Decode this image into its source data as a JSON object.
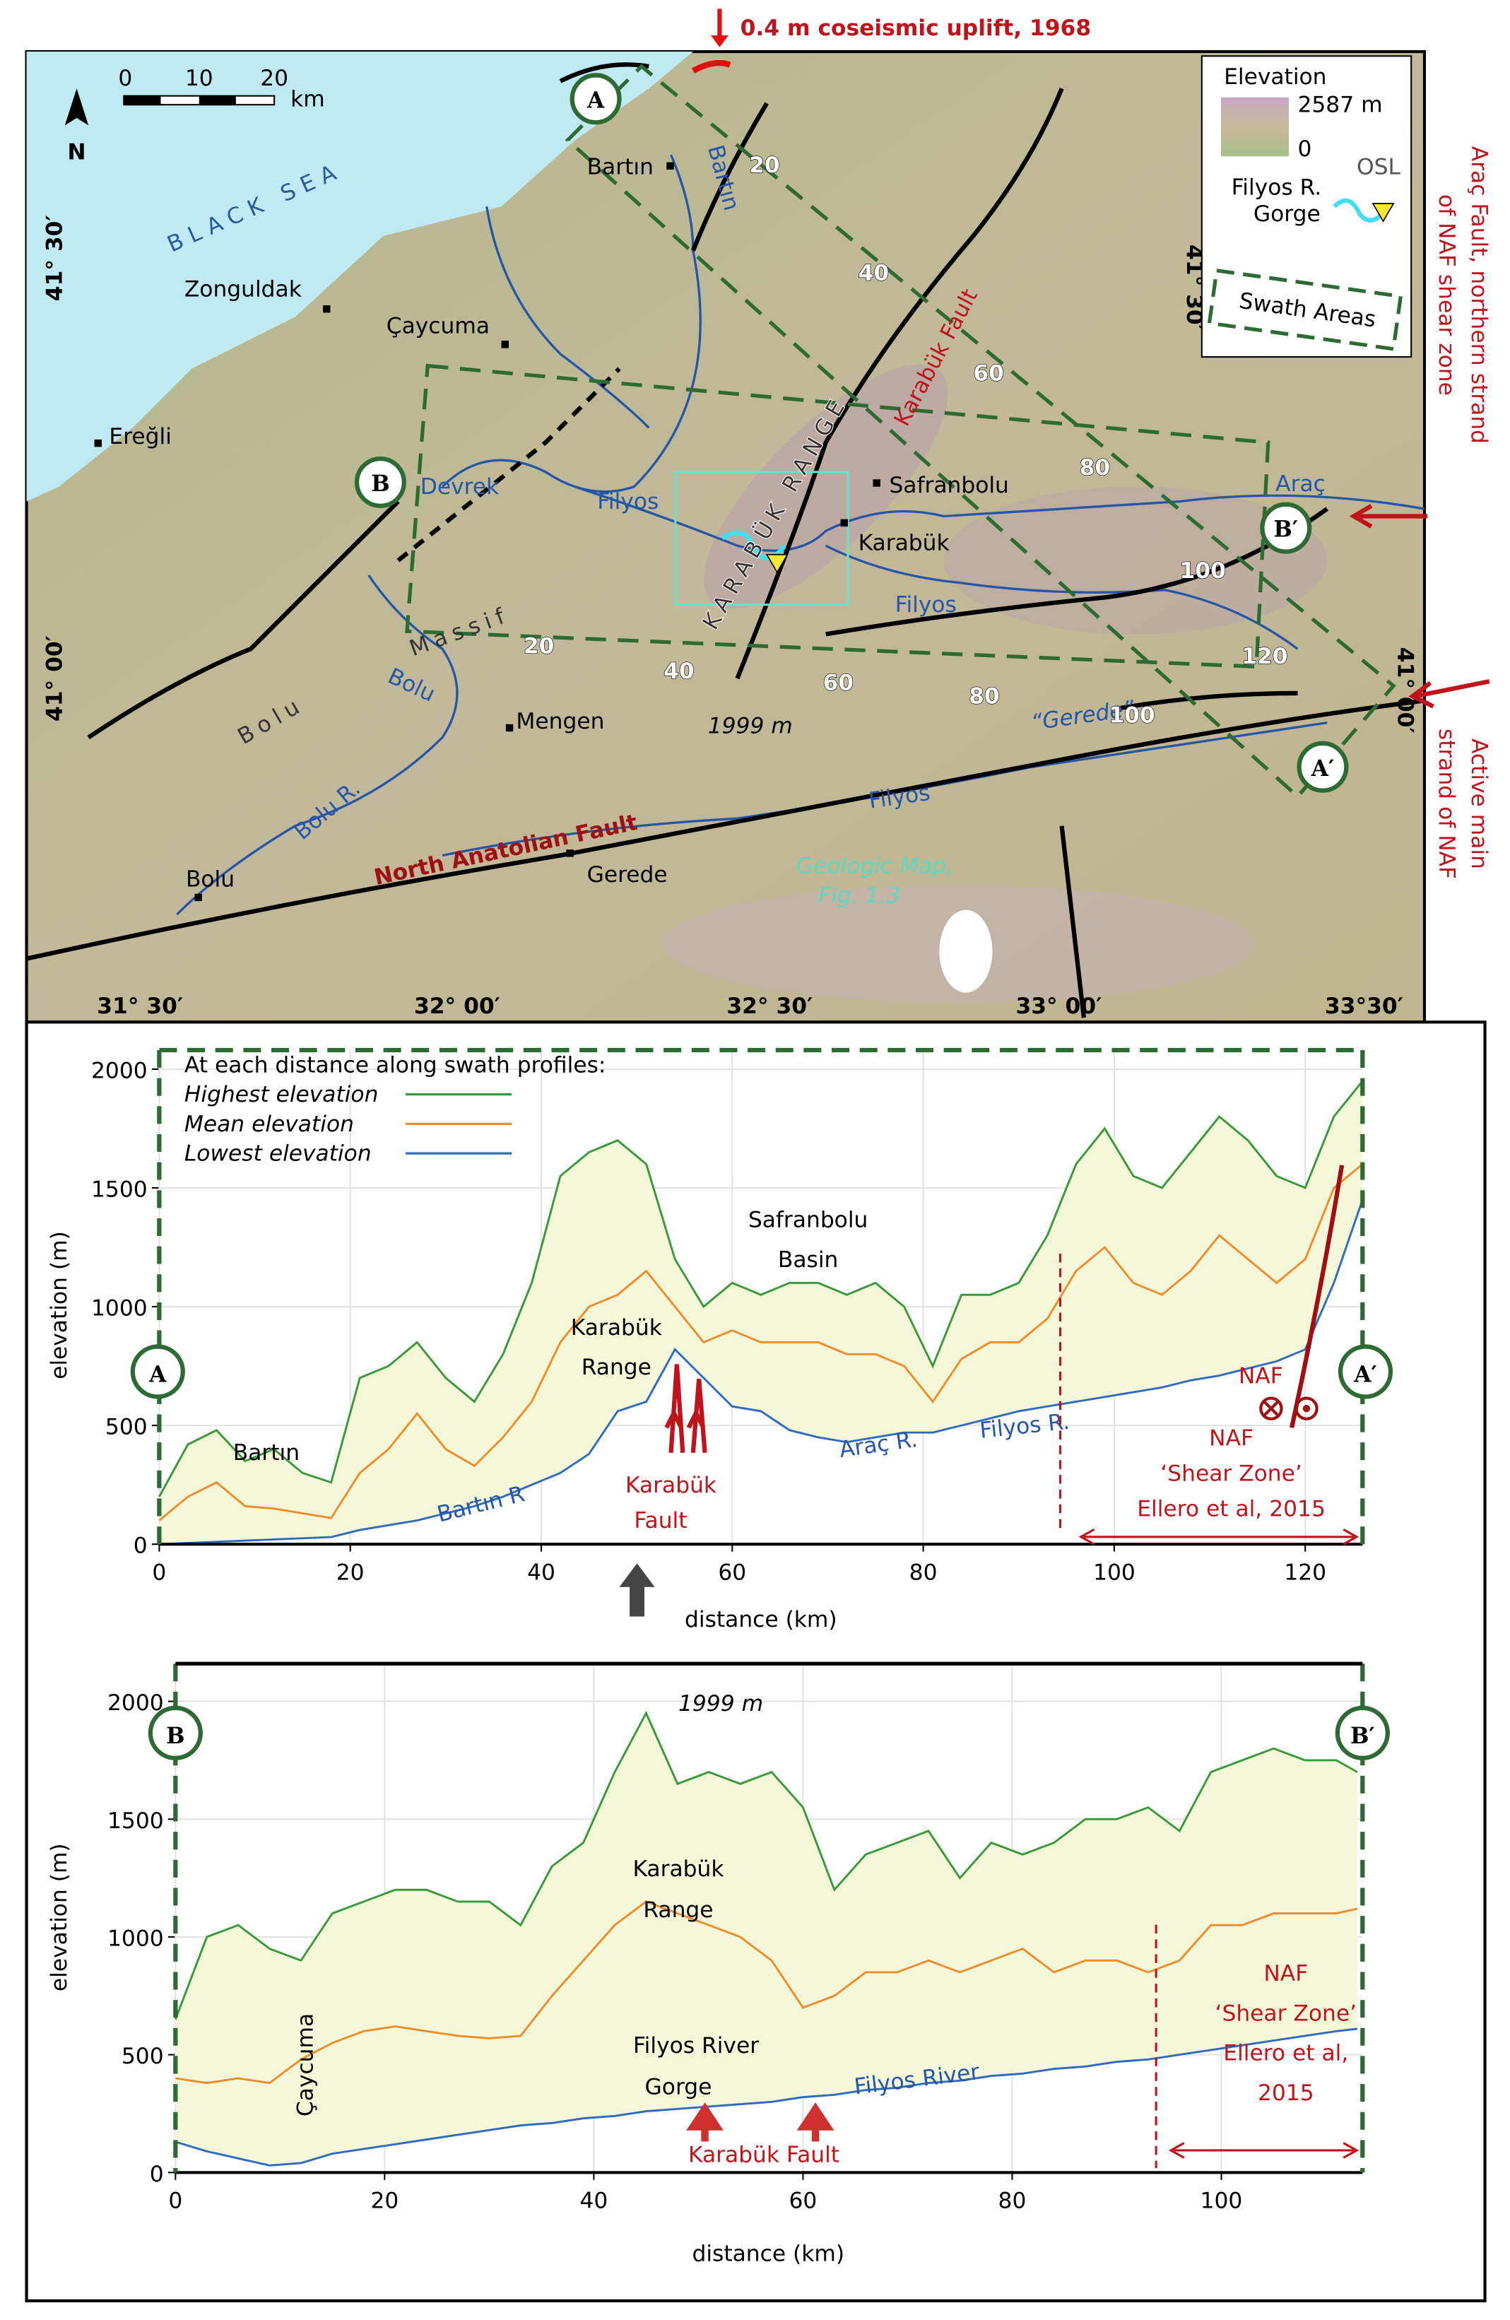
{
  "map": {
    "uplift_note": "0.4 m coseismic uplift, 1968",
    "sea": "BLACK SEA",
    "towns": [
      "Zonguldak",
      "Çaycuma",
      "Ereğli",
      "Bartın",
      "Safranbolu",
      "Karabük",
      "Mengen",
      "Bolu",
      "Gerede"
    ],
    "rivers": [
      "Bartın",
      "Devrek",
      "Filyos",
      "Filyos",
      "Araç",
      "Bolu",
      "Bolu R.",
      "“Gerede”",
      "Filyos"
    ],
    "features": [
      "KARABÜK RANGE",
      "Bolu",
      "Massif",
      "Karabük Fault",
      "North Anatolian Fault",
      "1999 m"
    ],
    "geologic_map_note": [
      "Geologic Map,",
      "Fig. 1.3"
    ],
    "contours": [
      "20",
      "40",
      "60",
      "80",
      "100",
      "120",
      "20",
      "40",
      "60",
      "80",
      "100"
    ],
    "profile_ends": [
      "A",
      "B",
      "B′",
      "A′"
    ],
    "latitudes": [
      "41° 30′",
      "41° 00′",
      "41° 30′",
      "41° 00′"
    ],
    "longitudes": [
      "31° 30′",
      "32° 00′",
      "32° 30′",
      "33° 00′",
      "33°30′"
    ],
    "north": "N",
    "scale": {
      "ticks": [
        "0",
        "10",
        "20"
      ],
      "unit": "km"
    },
    "legend": {
      "title": "Elevation",
      "max": "2587 m",
      "min": "0",
      "gorge": [
        "Filyos R.",
        "Gorge"
      ],
      "osl": "OSL",
      "swath": "Swath Areas"
    },
    "side_notes": [
      [
        "Araç Fault, northern strand",
        "of NAF shear zone"
      ],
      [
        "Active main",
        "strand of NAF"
      ]
    ]
  },
  "chart_data": [
    {
      "type": "line",
      "x_label": "distance (km)",
      "y_label": "elevation (m)",
      "legend_title": "At each distance along swath profiles:",
      "x": [
        0,
        3,
        6,
        9,
        12,
        15,
        18,
        21,
        24,
        27,
        30,
        33,
        36,
        39,
        42,
        45,
        48,
        51,
        54,
        57,
        60,
        63,
        66,
        69,
        72,
        75,
        78,
        81,
        84,
        87,
        90,
        93,
        96,
        99,
        102,
        105,
        108,
        111,
        114,
        117,
        120,
        123,
        126
      ],
      "series": [
        {
          "name": "Highest elevation",
          "color": "#3a9a3a",
          "values": [
            200,
            420,
            480,
            350,
            400,
            300,
            260,
            700,
            750,
            850,
            700,
            600,
            800,
            1100,
            1550,
            1650,
            1700,
            1600,
            1200,
            1000,
            1100,
            1050,
            1100,
            1100,
            1050,
            1100,
            1000,
            750,
            1050,
            1050,
            1100,
            1300,
            1600,
            1750,
            1550,
            1500,
            1650,
            1800,
            1700,
            1550,
            1500,
            1800,
            1950
          ]
        },
        {
          "name": "Mean elevation",
          "color": "#f08c2a",
          "values": [
            100,
            200,
            260,
            160,
            150,
            130,
            110,
            300,
            400,
            550,
            400,
            330,
            450,
            600,
            850,
            1000,
            1050,
            1150,
            1000,
            850,
            900,
            850,
            850,
            850,
            800,
            800,
            750,
            600,
            780,
            850,
            850,
            950,
            1150,
            1250,
            1100,
            1050,
            1150,
            1300,
            1200,
            1100,
            1200,
            1500,
            1600
          ]
        },
        {
          "name": "Lowest elevation",
          "color": "#2f6cc0",
          "values": [
            0,
            5,
            10,
            15,
            20,
            25,
            30,
            60,
            80,
            100,
            130,
            160,
            200,
            250,
            300,
            380,
            560,
            600,
            820,
            700,
            580,
            560,
            480,
            450,
            430,
            450,
            470,
            470,
            500,
            530,
            560,
            580,
            600,
            620,
            640,
            660,
            690,
            710,
            740,
            770,
            820,
            1100,
            1450
          ]
        }
      ],
      "fill_color": "#f5f8d8",
      "xlim": [
        0,
        126
      ],
      "ylim": [
        0,
        2080
      ],
      "xticks": [
        0,
        20,
        40,
        60,
        80,
        100,
        120
      ],
      "yticks": [
        0,
        500,
        1000,
        1500,
        2000
      ],
      "grid": true,
      "annotations": [
        "A",
        "A′",
        "Bartın",
        [
          "Karabük",
          "Range"
        ],
        [
          "Safranbolu",
          "Basin"
        ],
        [
          "Karabük",
          "Fault"
        ],
        "Bartın R",
        "Araç R.",
        "Filyos R.",
        "NAF",
        [
          "NAF",
          "‘Shear Zone’",
          "Ellero et al, 2015"
        ]
      ]
    },
    {
      "type": "line",
      "x_label": "distance (km)",
      "y_label": "elevation (m)",
      "x": [
        0,
        3,
        6,
        9,
        12,
        15,
        18,
        21,
        24,
        27,
        30,
        33,
        36,
        39,
        42,
        45,
        48,
        51,
        54,
        57,
        60,
        63,
        66,
        69,
        72,
        75,
        78,
        81,
        84,
        87,
        90,
        93,
        96,
        99,
        102,
        105,
        108,
        111,
        113
      ],
      "series": [
        {
          "color": "#3a9a3a",
          "values": [
            650,
            1000,
            1050,
            950,
            900,
            1100,
            1150,
            1200,
            1200,
            1150,
            1150,
            1050,
            1300,
            1400,
            1700,
            1950,
            1650,
            1700,
            1650,
            1700,
            1550,
            1200,
            1350,
            1400,
            1450,
            1250,
            1400,
            1350,
            1400,
            1500,
            1500,
            1550,
            1450,
            1700,
            1750,
            1800,
            1750,
            1750,
            1700
          ]
        },
        {
          "color": "#f08c2a",
          "values": [
            400,
            380,
            400,
            380,
            480,
            550,
            600,
            620,
            600,
            580,
            570,
            580,
            750,
            900,
            1050,
            1150,
            1100,
            1050,
            1000,
            900,
            700,
            750,
            850,
            850,
            900,
            850,
            900,
            950,
            850,
            900,
            900,
            850,
            900,
            1050,
            1050,
            1100,
            1100,
            1100,
            1120
          ]
        },
        {
          "color": "#2f6cc0",
          "values": [
            130,
            90,
            60,
            30,
            40,
            80,
            100,
            120,
            140,
            160,
            180,
            200,
            210,
            230,
            240,
            260,
            270,
            280,
            290,
            300,
            320,
            330,
            350,
            360,
            380,
            390,
            410,
            420,
            440,
            450,
            470,
            480,
            500,
            520,
            540,
            560,
            580,
            600,
            610
          ]
        }
      ],
      "fill_color": "#f5f8d8",
      "xlim": [
        0,
        113.5
      ],
      "ylim": [
        0,
        2160
      ],
      "xticks": [
        0,
        20,
        40,
        60,
        80,
        100
      ],
      "yticks": [
        0,
        500,
        1000,
        1500,
        2000
      ],
      "grid": true,
      "annotations": [
        "B",
        "B′",
        "1999 m",
        [
          "Karabük",
          "Range"
        ],
        "Çaycuma",
        [
          "Filyos River",
          "Gorge"
        ],
        "Karabük Fault",
        "Filyos River",
        [
          "NAF",
          "‘Shear Zone’",
          "Ellero et al,",
          "2015"
        ]
      ]
    }
  ]
}
